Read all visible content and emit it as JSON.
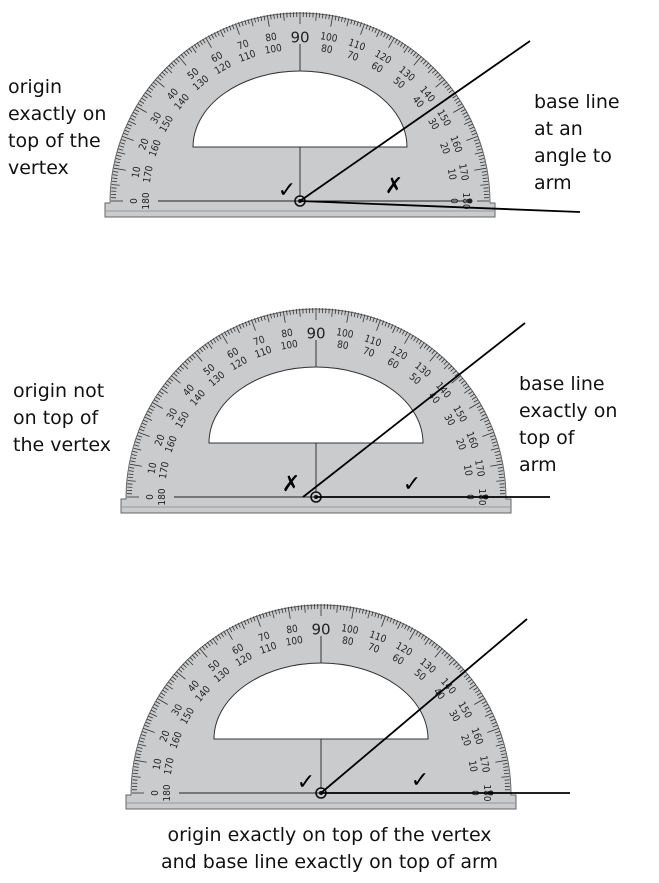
{
  "captions": {
    "panel1_left": "origin\nexactly on\ntop of the\nvertex",
    "panel1_right": "base line\nat an\nangle to\narm",
    "panel2_left": "origin not\non top of\nthe vertex",
    "panel2_right": "base line\nexactly on\ntop of\narm",
    "panel3_bottom": "origin exactly on top of the vertex\nand base line exactly on top of arm"
  },
  "protractor": {
    "center_label": "90",
    "outer_scale": [
      "0",
      "10",
      "20",
      "30",
      "40",
      "50",
      "60",
      "70",
      "80",
      "90",
      "100",
      "110",
      "120",
      "130",
      "140",
      "150",
      "160",
      "170",
      "180"
    ],
    "inner_scale": [
      "180",
      "170",
      "160",
      "150",
      "140",
      "130",
      "120",
      "110",
      "100",
      "90",
      "80",
      "70",
      "60",
      "50",
      "40",
      "30",
      "20",
      "10",
      "0"
    ]
  },
  "marks": {
    "check": "✓",
    "cross": "✗"
  },
  "panels": [
    {
      "left_mark": "check",
      "right_mark": "cross"
    },
    {
      "left_mark": "cross",
      "right_mark": "check"
    },
    {
      "left_mark": "check",
      "right_mark": "check"
    }
  ]
}
